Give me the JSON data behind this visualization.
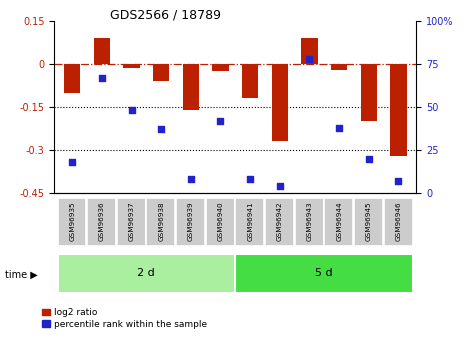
{
  "title": "GDS2566 / 18789",
  "samples": [
    "GSM96935",
    "GSM96936",
    "GSM96937",
    "GSM96938",
    "GSM96939",
    "GSM96940",
    "GSM96941",
    "GSM96942",
    "GSM96943",
    "GSM96944",
    "GSM96945",
    "GSM96946"
  ],
  "log2_ratio": [
    -0.1,
    0.09,
    -0.015,
    -0.06,
    -0.16,
    -0.025,
    -0.12,
    -0.27,
    0.09,
    -0.02,
    -0.2,
    -0.32
  ],
  "percentile_rank": [
    18,
    67,
    48,
    37,
    8,
    42,
    8,
    4,
    78,
    38,
    20,
    7
  ],
  "group1_label": "2 d",
  "group2_label": "5 d",
  "group1_count": 6,
  "group2_count": 6,
  "bar_color": "#bb2000",
  "dot_color": "#2222cc",
  "ylim_left": [
    -0.45,
    0.15
  ],
  "ylim_right": [
    0,
    100
  ],
  "yticks_left": [
    0.15,
    0,
    -0.15,
    -0.3,
    -0.45
  ],
  "yticks_right": [
    100,
    75,
    50,
    25,
    0
  ],
  "hline_y": 0,
  "dotted_lines": [
    -0.15,
    -0.3
  ],
  "group1_color": "#aaeea0",
  "group2_color": "#44dd44",
  "sample_box_color": "#cccccc",
  "legend_labels": [
    "log2 ratio",
    "percentile rank within the sample"
  ],
  "time_label": "time"
}
